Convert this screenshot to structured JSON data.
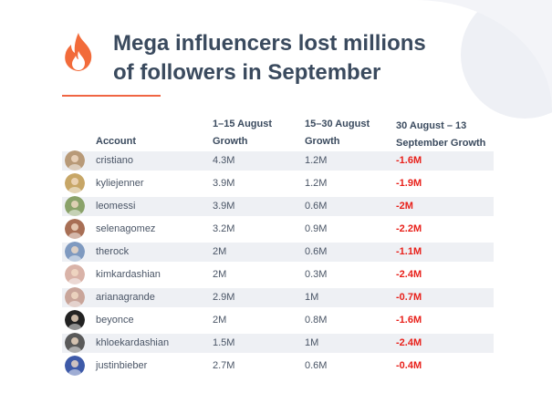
{
  "header": {
    "title_line1": "Mega influencers lost millions",
    "title_line2": "of followers in September"
  },
  "colors": {
    "accent": "#f06543",
    "negative": "#e8201a",
    "text": "#3a4a5e",
    "row_band": "#eef0f4"
  },
  "table": {
    "columns": {
      "account": "Account",
      "g1_line1": "1–15 August",
      "g1_line2": "Growth",
      "g2_line1": "15–30 August",
      "g2_line2": "Growth",
      "g3_line1": "30 August – 13",
      "g3_line2": "September Growth"
    },
    "rows": [
      {
        "account": "cristiano",
        "g1": "4.3M",
        "g2": "1.2M",
        "g3": "-1.6M",
        "avatar_color": "#b89a78"
      },
      {
        "account": "kyliejenner",
        "g1": "3.9M",
        "g2": "1.2M",
        "g3": "-1.9M",
        "avatar_color": "#c7a667"
      },
      {
        "account": "leomessi",
        "g1": "3.9M",
        "g2": "0.6M",
        "g3": "-2M",
        "avatar_color": "#8aa26a"
      },
      {
        "account": "selenagomez",
        "g1": "3.2M",
        "g2": "0.9M",
        "g3": "-2.2M",
        "avatar_color": "#a86f55"
      },
      {
        "account": "therock",
        "g1": "2M",
        "g2": "0.6M",
        "g3": "-1.1M",
        "avatar_color": "#7f9ac0"
      },
      {
        "account": "kimkardashian",
        "g1": "2M",
        "g2": "0.3M",
        "g3": "-2.4M",
        "avatar_color": "#d9b3a8"
      },
      {
        "account": "arianagrande",
        "g1": "2.9M",
        "g2": "1M",
        "g3": "-0.7M",
        "avatar_color": "#c9a59a"
      },
      {
        "account": "beyonce",
        "g1": "2M",
        "g2": "0.8M",
        "g3": "-1.6M",
        "avatar_color": "#222222"
      },
      {
        "account": "khloekardashian",
        "g1": "1.5M",
        "g2": "1M",
        "g3": "-2.4M",
        "avatar_color": "#5a5a5a"
      },
      {
        "account": "justinbieber",
        "g1": "2.7M",
        "g2": "0.6M",
        "g3": "-0.4M",
        "avatar_color": "#3e5aa8"
      }
    ]
  }
}
